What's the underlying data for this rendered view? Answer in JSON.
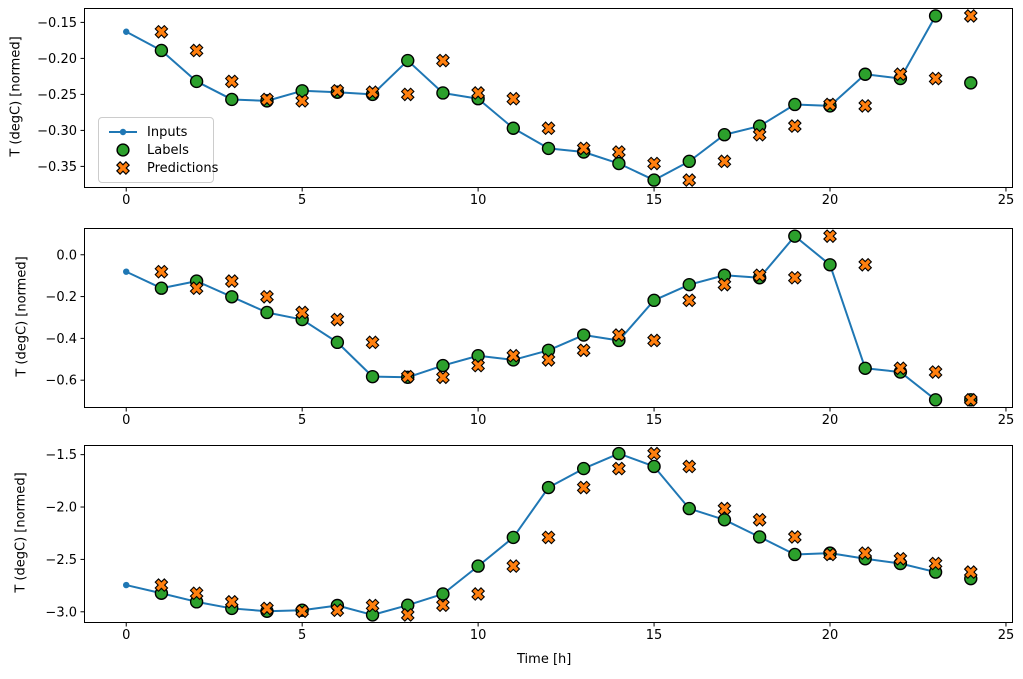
{
  "figure": {
    "background": "#ffffff",
    "xlabel": "Time [h]",
    "legend": {
      "position": "upper-left of first subplot",
      "entries": [
        {
          "label": "Inputs",
          "marker": "line-with-dot",
          "color": "#1f77b4"
        },
        {
          "label": "Labels",
          "marker": "filled-circle",
          "color": "#2ca02c",
          "edge_color": "#000000"
        },
        {
          "label": "Predictions",
          "marker": "filled-x",
          "color": "#ff7f0e",
          "edge_color": "#000000"
        }
      ]
    }
  },
  "chart_data": [
    {
      "type": "line",
      "ylabel": "T (degC) [normed]",
      "xlim": [
        -1.2,
        25.2
      ],
      "ylim": [
        -0.38,
        -0.13
      ],
      "grid": false,
      "legend_visible": true,
      "xticks": [
        {
          "v": 0,
          "label": "0"
        },
        {
          "v": 5,
          "label": "5"
        },
        {
          "v": 10,
          "label": "10"
        },
        {
          "v": 15,
          "label": "15"
        },
        {
          "v": 20,
          "label": "20"
        },
        {
          "v": 25,
          "label": "25"
        }
      ],
      "yticks": [
        {
          "v": -0.15,
          "label": "−0.15"
        },
        {
          "v": -0.2,
          "label": "−0.20"
        },
        {
          "v": -0.25,
          "label": "−0.25"
        },
        {
          "v": -0.3,
          "label": "−0.30"
        },
        {
          "v": -0.35,
          "label": "−0.35"
        }
      ],
      "series": [
        {
          "name": "Inputs",
          "marker": "dot-line",
          "color": "#1f77b4",
          "x": [
            0,
            1,
            2,
            3,
            4,
            5,
            6,
            7,
            8,
            9,
            10,
            11,
            12,
            13,
            14,
            15,
            16,
            17,
            18,
            19,
            20,
            21,
            22,
            23
          ],
          "y": [
            -0.163,
            -0.189,
            -0.232,
            -0.257,
            -0.259,
            -0.245,
            -0.247,
            -0.25,
            -0.203,
            -0.248,
            -0.256,
            -0.297,
            -0.325,
            -0.33,
            -0.346,
            -0.369,
            -0.343,
            -0.306,
            -0.294,
            -0.264,
            -0.266,
            -0.222,
            -0.228,
            -0.141
          ]
        },
        {
          "name": "Labels",
          "marker": "circle",
          "color": "#2ca02c",
          "edge": "#000000",
          "x": [
            1,
            2,
            3,
            4,
            5,
            6,
            7,
            8,
            9,
            10,
            11,
            12,
            13,
            14,
            15,
            16,
            17,
            18,
            19,
            20,
            21,
            22,
            23,
            24
          ],
          "y": [
            -0.189,
            -0.232,
            -0.257,
            -0.259,
            -0.245,
            -0.247,
            -0.25,
            -0.203,
            -0.248,
            -0.256,
            -0.297,
            -0.325,
            -0.33,
            -0.346,
            -0.369,
            -0.343,
            -0.306,
            -0.294,
            -0.264,
            -0.266,
            -0.222,
            -0.228,
            -0.141,
            -0.234
          ]
        },
        {
          "name": "Predictions",
          "marker": "X",
          "color": "#ff7f0e",
          "edge": "#000000",
          "x": [
            1,
            2,
            3,
            4,
            5,
            6,
            7,
            8,
            9,
            10,
            11,
            12,
            13,
            14,
            15,
            16,
            17,
            18,
            19,
            20,
            21,
            22,
            23,
            24
          ],
          "y": [
            -0.163,
            -0.189,
            -0.232,
            -0.257,
            -0.259,
            -0.245,
            -0.247,
            -0.25,
            -0.203,
            -0.248,
            -0.256,
            -0.297,
            -0.325,
            -0.33,
            -0.346,
            -0.369,
            -0.343,
            -0.306,
            -0.294,
            -0.264,
            -0.266,
            -0.222,
            -0.228,
            -0.141
          ]
        }
      ]
    },
    {
      "type": "line",
      "ylabel": "T (degC) [normed]",
      "xlim": [
        -1.2,
        25.2
      ],
      "ylim": [
        -0.733,
        0.128
      ],
      "grid": false,
      "legend_visible": false,
      "xticks": [
        {
          "v": 0,
          "label": "0"
        },
        {
          "v": 5,
          "label": "5"
        },
        {
          "v": 10,
          "label": "10"
        },
        {
          "v": 15,
          "label": "15"
        },
        {
          "v": 20,
          "label": "20"
        },
        {
          "v": 25,
          "label": "25"
        }
      ],
      "yticks": [
        {
          "v": 0.0,
          "label": "0.0"
        },
        {
          "v": -0.2,
          "label": "−0.2"
        },
        {
          "v": -0.4,
          "label": "−0.4"
        },
        {
          "v": -0.6,
          "label": "−0.6"
        }
      ],
      "series": [
        {
          "name": "Inputs",
          "marker": "dot-line",
          "color": "#1f77b4",
          "x": [
            0,
            1,
            2,
            3,
            4,
            5,
            6,
            7,
            8,
            9,
            10,
            11,
            12,
            13,
            14,
            15,
            16,
            17,
            18,
            19,
            20,
            21,
            22,
            23
          ],
          "y": [
            -0.081,
            -0.16,
            -0.126,
            -0.201,
            -0.276,
            -0.31,
            -0.419,
            -0.583,
            -0.586,
            -0.53,
            -0.483,
            -0.503,
            -0.457,
            -0.384,
            -0.41,
            -0.218,
            -0.143,
            -0.098,
            -0.11,
            0.089,
            -0.048,
            -0.543,
            -0.561,
            -0.694
          ]
        },
        {
          "name": "Labels",
          "marker": "circle",
          "color": "#2ca02c",
          "edge": "#000000",
          "x": [
            1,
            2,
            3,
            4,
            5,
            6,
            7,
            8,
            9,
            10,
            11,
            12,
            13,
            14,
            15,
            16,
            17,
            18,
            19,
            20,
            21,
            22,
            23,
            24
          ],
          "y": [
            -0.16,
            -0.126,
            -0.201,
            -0.276,
            -0.31,
            -0.419,
            -0.583,
            -0.586,
            -0.53,
            -0.483,
            -0.503,
            -0.457,
            -0.384,
            -0.41,
            -0.218,
            -0.143,
            -0.098,
            -0.11,
            0.089,
            -0.048,
            -0.543,
            -0.561,
            -0.694,
            -0.694
          ]
        },
        {
          "name": "Predictions",
          "marker": "X",
          "color": "#ff7f0e",
          "edge": "#000000",
          "x": [
            1,
            2,
            3,
            4,
            5,
            6,
            7,
            8,
            9,
            10,
            11,
            12,
            13,
            14,
            15,
            16,
            17,
            18,
            19,
            20,
            21,
            22,
            23,
            24
          ],
          "y": [
            -0.081,
            -0.16,
            -0.126,
            -0.201,
            -0.276,
            -0.31,
            -0.419,
            -0.583,
            -0.586,
            -0.53,
            -0.483,
            -0.503,
            -0.457,
            -0.384,
            -0.41,
            -0.218,
            -0.143,
            -0.098,
            -0.11,
            0.089,
            -0.048,
            -0.543,
            -0.561,
            -0.694
          ]
        }
      ]
    },
    {
      "type": "line",
      "ylabel": "T (degC) [normed]",
      "xlim": [
        -1.2,
        25.2
      ],
      "ylim": [
        -3.107,
        -1.408
      ],
      "grid": false,
      "legend_visible": false,
      "xticks": [
        {
          "v": 0,
          "label": "0"
        },
        {
          "v": 5,
          "label": "5"
        },
        {
          "v": 10,
          "label": "10"
        },
        {
          "v": 15,
          "label": "15"
        },
        {
          "v": 20,
          "label": "20"
        },
        {
          "v": 25,
          "label": "25"
        }
      ],
      "yticks": [
        {
          "v": -1.5,
          "label": "−1.5"
        },
        {
          "v": -2.0,
          "label": "−2.0"
        },
        {
          "v": -2.5,
          "label": "−2.5"
        },
        {
          "v": -3.0,
          "label": "−3.0"
        }
      ],
      "series": [
        {
          "name": "Inputs",
          "marker": "dot-line",
          "color": "#1f77b4",
          "x": [
            0,
            1,
            2,
            3,
            4,
            5,
            6,
            7,
            8,
            9,
            10,
            11,
            12,
            13,
            14,
            15,
            16,
            17,
            18,
            19,
            20,
            21,
            22,
            23
          ],
          "y": [
            -2.745,
            -2.823,
            -2.905,
            -2.968,
            -2.995,
            -2.985,
            -2.94,
            -3.03,
            -2.937,
            -2.83,
            -2.564,
            -2.29,
            -1.814,
            -1.633,
            -1.49,
            -1.613,
            -2.015,
            -2.122,
            -2.286,
            -2.453,
            -2.44,
            -2.494,
            -2.539,
            -2.621
          ]
        },
        {
          "name": "Labels",
          "marker": "circle",
          "color": "#2ca02c",
          "edge": "#000000",
          "x": [
            1,
            2,
            3,
            4,
            5,
            6,
            7,
            8,
            9,
            10,
            11,
            12,
            13,
            14,
            15,
            16,
            17,
            18,
            19,
            20,
            21,
            22,
            23,
            24
          ],
          "y": [
            -2.823,
            -2.905,
            -2.968,
            -2.995,
            -2.985,
            -2.94,
            -3.03,
            -2.937,
            -2.83,
            -2.564,
            -2.29,
            -1.814,
            -1.633,
            -1.49,
            -1.613,
            -2.015,
            -2.122,
            -2.286,
            -2.453,
            -2.44,
            -2.494,
            -2.539,
            -2.621,
            -2.684
          ]
        },
        {
          "name": "Predictions",
          "marker": "X",
          "color": "#ff7f0e",
          "edge": "#000000",
          "x": [
            1,
            2,
            3,
            4,
            5,
            6,
            7,
            8,
            9,
            10,
            11,
            12,
            13,
            14,
            15,
            16,
            17,
            18,
            19,
            20,
            21,
            22,
            23,
            24
          ],
          "y": [
            -2.745,
            -2.823,
            -2.905,
            -2.968,
            -2.995,
            -2.985,
            -2.94,
            -3.03,
            -2.937,
            -2.83,
            -2.564,
            -2.29,
            -1.814,
            -1.633,
            -1.49,
            -1.613,
            -2.015,
            -2.122,
            -2.286,
            -2.453,
            -2.44,
            -2.494,
            -2.539,
            -2.621
          ]
        }
      ]
    }
  ]
}
